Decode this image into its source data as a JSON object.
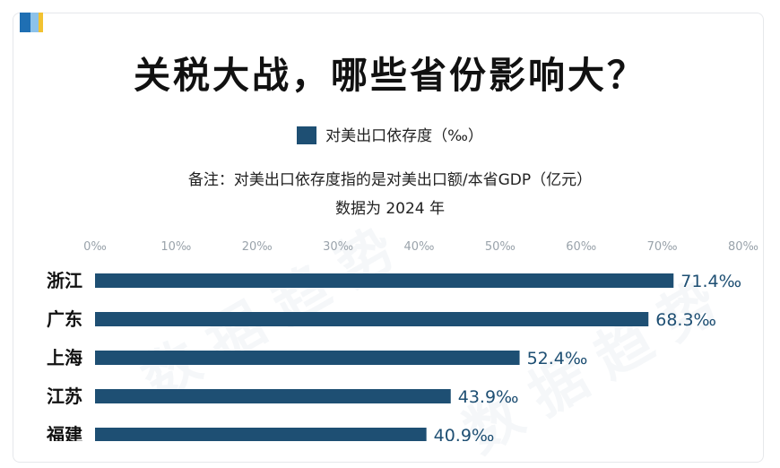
{
  "title": "关税大战，哪些省份影响大？",
  "note": "备注：对美出口依存度指的是对美出口额/本省GDP（亿元）",
  "note2": "数据为 2024 年",
  "colors": {
    "bar": "#1e4f73",
    "value_label": "#1e4f73"
  },
  "chart_data": {
    "type": "bar",
    "orientation": "horizontal",
    "title": "关税大战，哪些省份影响大？",
    "categories": [
      "浙江",
      "广东",
      "上海",
      "江苏",
      "福建"
    ],
    "series": [
      {
        "name": "对美出口依存度（‰）",
        "values": [
          71.4,
          68.3,
          52.4,
          43.9,
          40.9
        ]
      }
    ],
    "value_labels": [
      "71.4‰",
      "68.3‰",
      "52.4‰",
      "43.9‰",
      "40.9‰"
    ],
    "xlim": [
      0,
      80
    ],
    "xticks": [
      0,
      10,
      20,
      30,
      40,
      50,
      60,
      70,
      80
    ],
    "xtick_labels": [
      "0‰",
      "10‰",
      "20‰",
      "30‰",
      "40‰",
      "50‰",
      "60‰",
      "70‰",
      "80‰"
    ],
    "xaxis_position": "top",
    "legend_position": "top-center",
    "grid": false
  }
}
